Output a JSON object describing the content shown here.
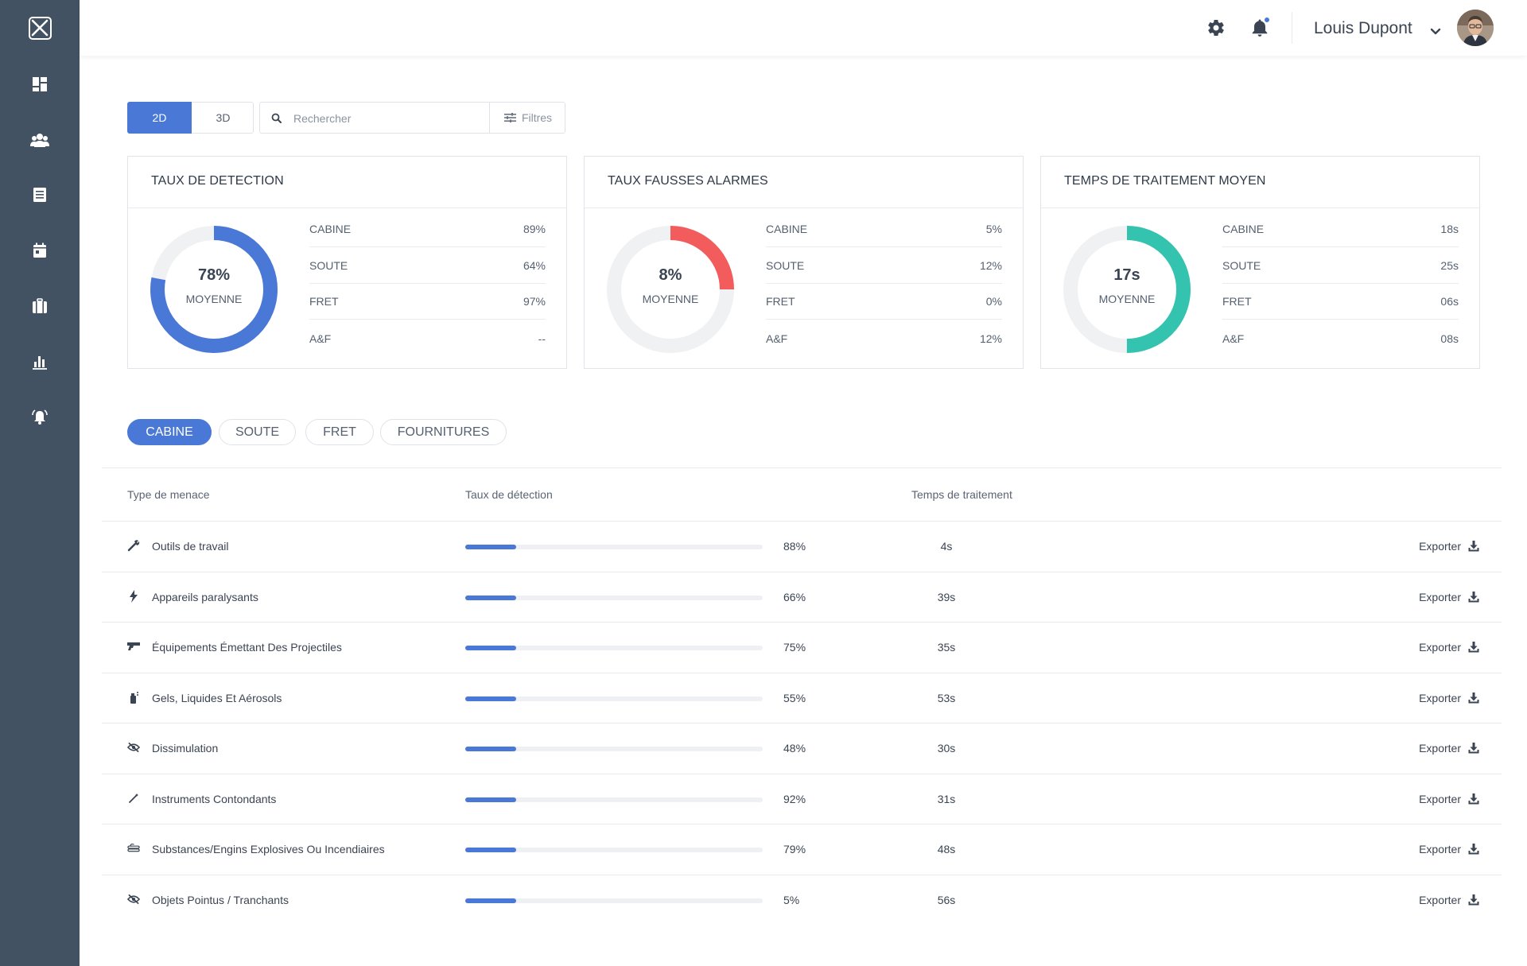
{
  "user": {
    "name": "Louis Dupont"
  },
  "nav": [
    "dashboard",
    "users",
    "list",
    "calendar",
    "luggage",
    "stats",
    "alarm"
  ],
  "toolbar": {
    "view_2d": "2D",
    "view_3d": "3D",
    "search_placeholder": "Rechercher",
    "filters_label": "Filtres"
  },
  "colors": {
    "accent": "#4a78d6",
    "danger": "#f25c5c",
    "teal": "#33c3ae",
    "sidebar": "#425263"
  },
  "cards": [
    {
      "title": "TAUX DE DETECTION",
      "center_value": "78%",
      "center_label": "MOYENNE",
      "fraction": 0.78,
      "color": "#4a78d6",
      "rows": [
        {
          "label": "CABINE",
          "value": "89%"
        },
        {
          "label": "SOUTE",
          "value": "64%"
        },
        {
          "label": "FRET",
          "value": "97%"
        },
        {
          "label": "A&F",
          "value": "--"
        }
      ]
    },
    {
      "title": "TAUX FAUSSES ALARMES",
      "center_value": "8%",
      "center_label": "MOYENNE",
      "fraction": 0.25,
      "color": "#f25c5c",
      "rows": [
        {
          "label": "CABINE",
          "value": "5%"
        },
        {
          "label": "SOUTE",
          "value": "12%"
        },
        {
          "label": "FRET",
          "value": "0%"
        },
        {
          "label": "A&F",
          "value": "12%"
        }
      ]
    },
    {
      "title": "TEMPS DE TRAITEMENT MOYEN",
      "center_value": "17s",
      "center_label": "MOYENNE",
      "fraction": 0.5,
      "color": "#33c3ae",
      "rows": [
        {
          "label": "CABINE",
          "value": "18s"
        },
        {
          "label": "SOUTE",
          "value": "25s"
        },
        {
          "label": "FRET",
          "value": "06s"
        },
        {
          "label": "A&F",
          "value": "08s"
        }
      ]
    }
  ],
  "tabs": [
    "CABINE",
    "SOUTE",
    "FRET",
    "FOURNITURES"
  ],
  "table": {
    "headers": {
      "type": "Type de menace",
      "rate": "Taux de détection",
      "time": "Temps de traitement"
    },
    "export_label": "Exporter",
    "rows": [
      {
        "icon": "wrench-icon",
        "name": "Outils de travail",
        "pct": "88%",
        "time": "4s",
        "fill": 0.17
      },
      {
        "icon": "bolt-icon",
        "name": "Appareils paralysants",
        "pct": "66%",
        "time": "39s",
        "fill": 0.17
      },
      {
        "icon": "gun-icon",
        "name": "Équipements Émettant Des Projectiles",
        "pct": "75%",
        "time": "35s",
        "fill": 0.17
      },
      {
        "icon": "spray-icon",
        "name": "Gels, Liquides Et Aérosols",
        "pct": "55%",
        "time": "53s",
        "fill": 0.17
      },
      {
        "icon": "eye-slash-icon",
        "name": "Dissimulation",
        "pct": "48%",
        "time": "30s",
        "fill": 0.17
      },
      {
        "icon": "wand-icon",
        "name": "Instruments Contondants",
        "pct": "92%",
        "time": "31s",
        "fill": 0.17
      },
      {
        "icon": "explosive-icon",
        "name": "Substances/Engins Explosives Ou Incendiaires",
        "pct": "79%",
        "time": "48s",
        "fill": 0.17
      },
      {
        "icon": "eye-slash-icon",
        "name": "Objets Pointus / Tranchants",
        "pct": "5%",
        "time": "56s",
        "fill": 0.17
      }
    ]
  }
}
